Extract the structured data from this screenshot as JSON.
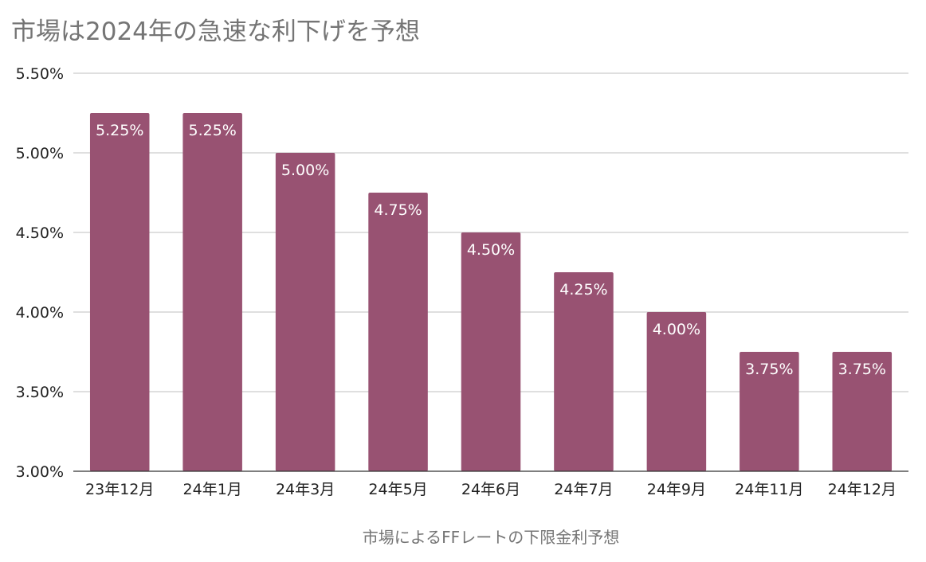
{
  "title": "市場は2024年の急速な利下げを予想",
  "chart_data": {
    "type": "bar",
    "title": "市場は2024年の急速な利下げを予想",
    "xlabel": "市場によるFFレートの下限金利予想",
    "ylabel": "",
    "categories": [
      "23年12月",
      "24年1月",
      "24年3月",
      "24年5月",
      "24年6月",
      "24年7月",
      "24年9月",
      "24年11月",
      "24年12月"
    ],
    "values": [
      5.25,
      5.25,
      5.0,
      4.75,
      4.5,
      4.25,
      4.0,
      3.75,
      3.75
    ],
    "data_labels": [
      "5.25%",
      "5.25%",
      "5.00%",
      "4.75%",
      "4.50%",
      "4.25%",
      "4.00%",
      "3.75%",
      "3.75%"
    ],
    "ylim": [
      3.0,
      5.5
    ],
    "yticks": [
      3.0,
      3.5,
      4.0,
      4.5,
      5.0,
      5.5
    ],
    "ytick_labels": [
      "3.00%",
      "3.50%",
      "4.00%",
      "4.50%",
      "5.00%",
      "5.50%"
    ],
    "grid": true,
    "legend": "none",
    "colors": {
      "bar": "#985272",
      "grid": "#cccccc",
      "axis": "#333333"
    }
  }
}
